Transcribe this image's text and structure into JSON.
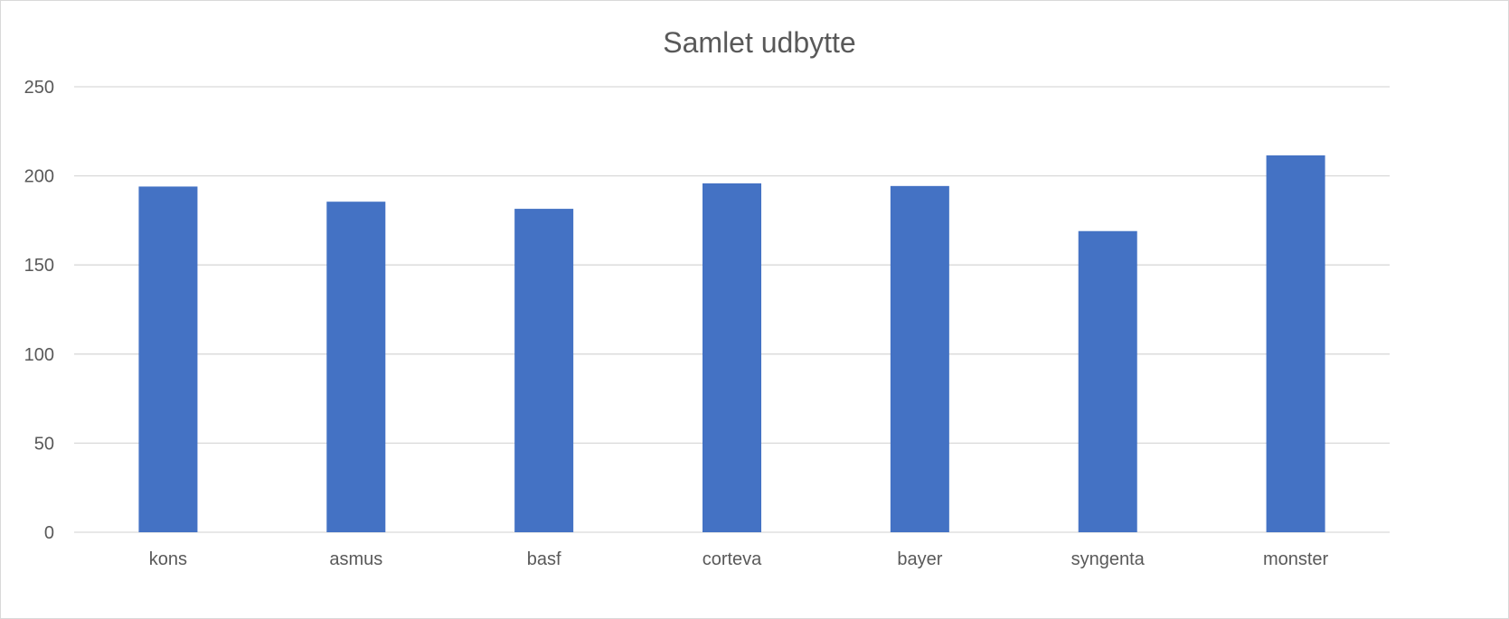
{
  "chart_data": {
    "type": "bar",
    "title": "Samlet udbytte",
    "xlabel": "",
    "ylabel": "",
    "categories": [
      "kons",
      "asmus",
      "basf",
      "corteva",
      "bayer",
      "syngenta",
      "monster"
    ],
    "values": [
      194,
      185.5,
      181.5,
      195.8,
      194.3,
      169,
      211.5
    ],
    "ylim": [
      0,
      250
    ],
    "yticks": [
      "0",
      "50",
      "100",
      "150",
      "200",
      "250"
    ],
    "grid": true,
    "legend": "none",
    "bar_color": "#4472C4",
    "gridline_color": "#D9D9D9"
  }
}
